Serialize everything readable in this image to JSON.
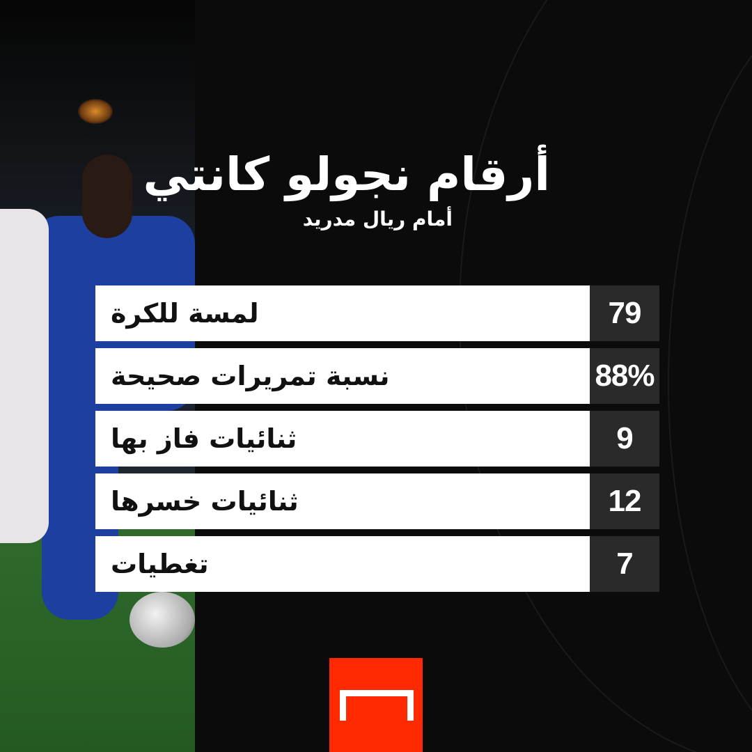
{
  "header": {
    "title": "أرقام نجولو كانتي",
    "subtitle": "أمام ريال مدريد"
  },
  "stats": [
    {
      "label": "لمسة للكرة",
      "value": "79"
    },
    {
      "label": "نسبة تمريرات صحيحة",
      "value": "88%"
    },
    {
      "label": "ثنائيات فاز بها",
      "value": "9"
    },
    {
      "label": "ثنائيات خسرها",
      "value": "12"
    },
    {
      "label": "تغطيات",
      "value": "7"
    }
  ],
  "colors": {
    "background": "#0b0b0b",
    "label_bg": "#ffffff",
    "value_bg": "#2a2a2a",
    "brand": "#ff2a00"
  },
  "logo": {
    "icon": "goal-logo-icon"
  }
}
